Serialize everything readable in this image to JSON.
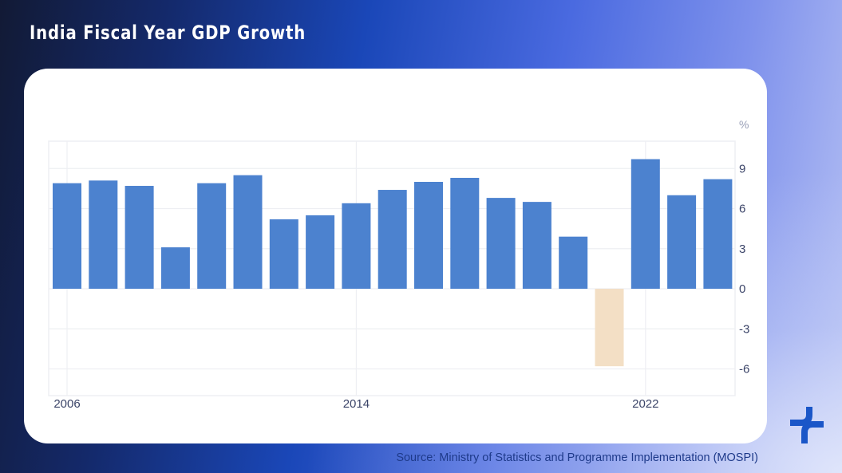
{
  "header": {
    "title": "India Fiscal Year GDP Growth"
  },
  "footer": {
    "source": "Source: Ministry of Statistics and Programme Implementation (MOSPI)"
  },
  "logo": {
    "icon": "brand-logo-icon",
    "color": "#1a56c8"
  },
  "colors": {
    "positive_bar": "#4c82cf",
    "negative_bar": "#f3dfc5",
    "grid": "#eeeff3",
    "tick_text": "#3b4468",
    "unit_text": "#9aa0b8"
  },
  "chart_data": {
    "type": "bar",
    "title": "India Fiscal Year GDP Growth",
    "xlabel": "",
    "ylabel": "%",
    "y_unit_label": "%",
    "y_axis_side": "right",
    "categories": [
      "2006",
      "2007",
      "2008",
      "2009",
      "2010",
      "2011",
      "2012",
      "2013",
      "2014",
      "2015",
      "2016",
      "2017",
      "2018",
      "2019",
      "2020",
      "2021",
      "2022",
      "2023",
      "2024"
    ],
    "values": [
      7.9,
      8.1,
      7.7,
      3.1,
      7.9,
      8.5,
      5.2,
      5.5,
      6.4,
      7.4,
      8.0,
      8.3,
      6.8,
      6.5,
      3.9,
      -5.8,
      9.7,
      7.0,
      8.2
    ],
    "x_tick_labels": [
      "2006",
      "2014",
      "2022"
    ],
    "y_ticks": [
      9,
      6,
      3,
      0,
      -3,
      -6
    ],
    "y_tick_labels": [
      "9",
      "6",
      "3",
      "0",
      "-3",
      "-6"
    ],
    "ylim": [
      -8,
      11
    ],
    "grid": true,
    "legend": "none"
  }
}
